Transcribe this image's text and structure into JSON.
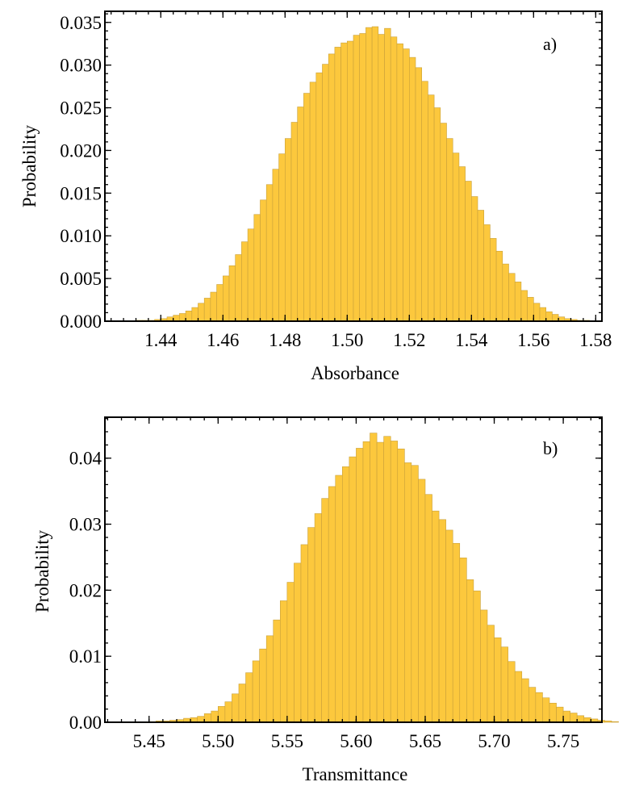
{
  "colors": {
    "bar_fill": "#FCC83D",
    "bar_edge": "#C9A03A",
    "frame": "#000000"
  },
  "chart_data": [
    {
      "type": "bar",
      "panel_label": "a)",
      "title": "",
      "xlabel": "Absorbance",
      "ylabel": "Probability",
      "xlim": [
        1.422,
        1.582
      ],
      "ylim": [
        0,
        0.0363
      ],
      "x_ticks": [
        "1.44",
        "1.46",
        "1.48",
        "1.50",
        "1.52",
        "1.54",
        "1.56",
        "1.58"
      ],
      "x_tick_values": [
        1.44,
        1.46,
        1.48,
        1.5,
        1.52,
        1.54,
        1.56,
        1.58
      ],
      "y_ticks": [
        "0.000",
        "0.005",
        "0.010",
        "0.015",
        "0.020",
        "0.025",
        "0.030",
        "0.035"
      ],
      "y_tick_values": [
        0,
        0.005,
        0.01,
        0.015,
        0.02,
        0.025,
        0.03,
        0.035
      ],
      "bin_start": 1.432,
      "bin_width": 0.002,
      "values": [
        0.0001,
        0.0001,
        0.0001,
        0.0002,
        0.0003,
        0.0005,
        0.0007,
        0.0009,
        0.0012,
        0.0016,
        0.0021,
        0.0027,
        0.0034,
        0.0043,
        0.0053,
        0.0065,
        0.0078,
        0.0093,
        0.0108,
        0.0125,
        0.0142,
        0.016,
        0.0178,
        0.0196,
        0.0214,
        0.0233,
        0.0251,
        0.0267,
        0.028,
        0.0291,
        0.0301,
        0.0313,
        0.0321,
        0.0326,
        0.0328,
        0.0335,
        0.0337,
        0.0344,
        0.0345,
        0.0336,
        0.0343,
        0.0333,
        0.0325,
        0.0319,
        0.0309,
        0.0297,
        0.0281,
        0.0265,
        0.025,
        0.0232,
        0.0214,
        0.0197,
        0.0181,
        0.0164,
        0.0146,
        0.013,
        0.0113,
        0.0097,
        0.0082,
        0.0067,
        0.0056,
        0.0046,
        0.0036,
        0.0028,
        0.0021,
        0.0016,
        0.0011,
        0.0008,
        0.0005,
        0.0003,
        0.0002,
        0.0001,
        0.0001
      ]
    },
    {
      "type": "bar",
      "panel_label": "b)",
      "title": "",
      "xlabel": "Transmittance",
      "ylabel": "Probability",
      "xlim": [
        5.418,
        5.778
      ],
      "ylim": [
        0,
        0.0462
      ],
      "x_ticks": [
        "5.45",
        "5.50",
        "5.55",
        "5.60",
        "5.65",
        "5.70",
        "5.75"
      ],
      "x_tick_values": [
        5.45,
        5.5,
        5.55,
        5.6,
        5.65,
        5.7,
        5.75
      ],
      "y_ticks": [
        "0.00",
        "0.01",
        "0.02",
        "0.03",
        "0.04"
      ],
      "y_tick_values": [
        0,
        0.01,
        0.02,
        0.03,
        0.04
      ],
      "bin_start": 5.45,
      "bin_width": 0.005,
      "values": [
        0.0001,
        0.0002,
        0.0002,
        0.0003,
        0.0004,
        0.0006,
        0.0007,
        0.0009,
        0.0013,
        0.0017,
        0.0024,
        0.0031,
        0.0043,
        0.0058,
        0.0075,
        0.0093,
        0.0111,
        0.0131,
        0.0155,
        0.0184,
        0.0212,
        0.0241,
        0.0269,
        0.0295,
        0.0316,
        0.0339,
        0.0357,
        0.0374,
        0.0387,
        0.0402,
        0.0415,
        0.0425,
        0.0438,
        0.0424,
        0.0433,
        0.0426,
        0.0414,
        0.0393,
        0.0389,
        0.0368,
        0.0345,
        0.032,
        0.0307,
        0.0291,
        0.0271,
        0.0249,
        0.0216,
        0.0199,
        0.017,
        0.0147,
        0.0128,
        0.0114,
        0.0092,
        0.0077,
        0.0066,
        0.0053,
        0.0045,
        0.0037,
        0.0029,
        0.0023,
        0.0017,
        0.0014,
        0.001,
        0.0007,
        0.0005,
        0.0003,
        0.0002,
        0.0001
      ]
    }
  ]
}
